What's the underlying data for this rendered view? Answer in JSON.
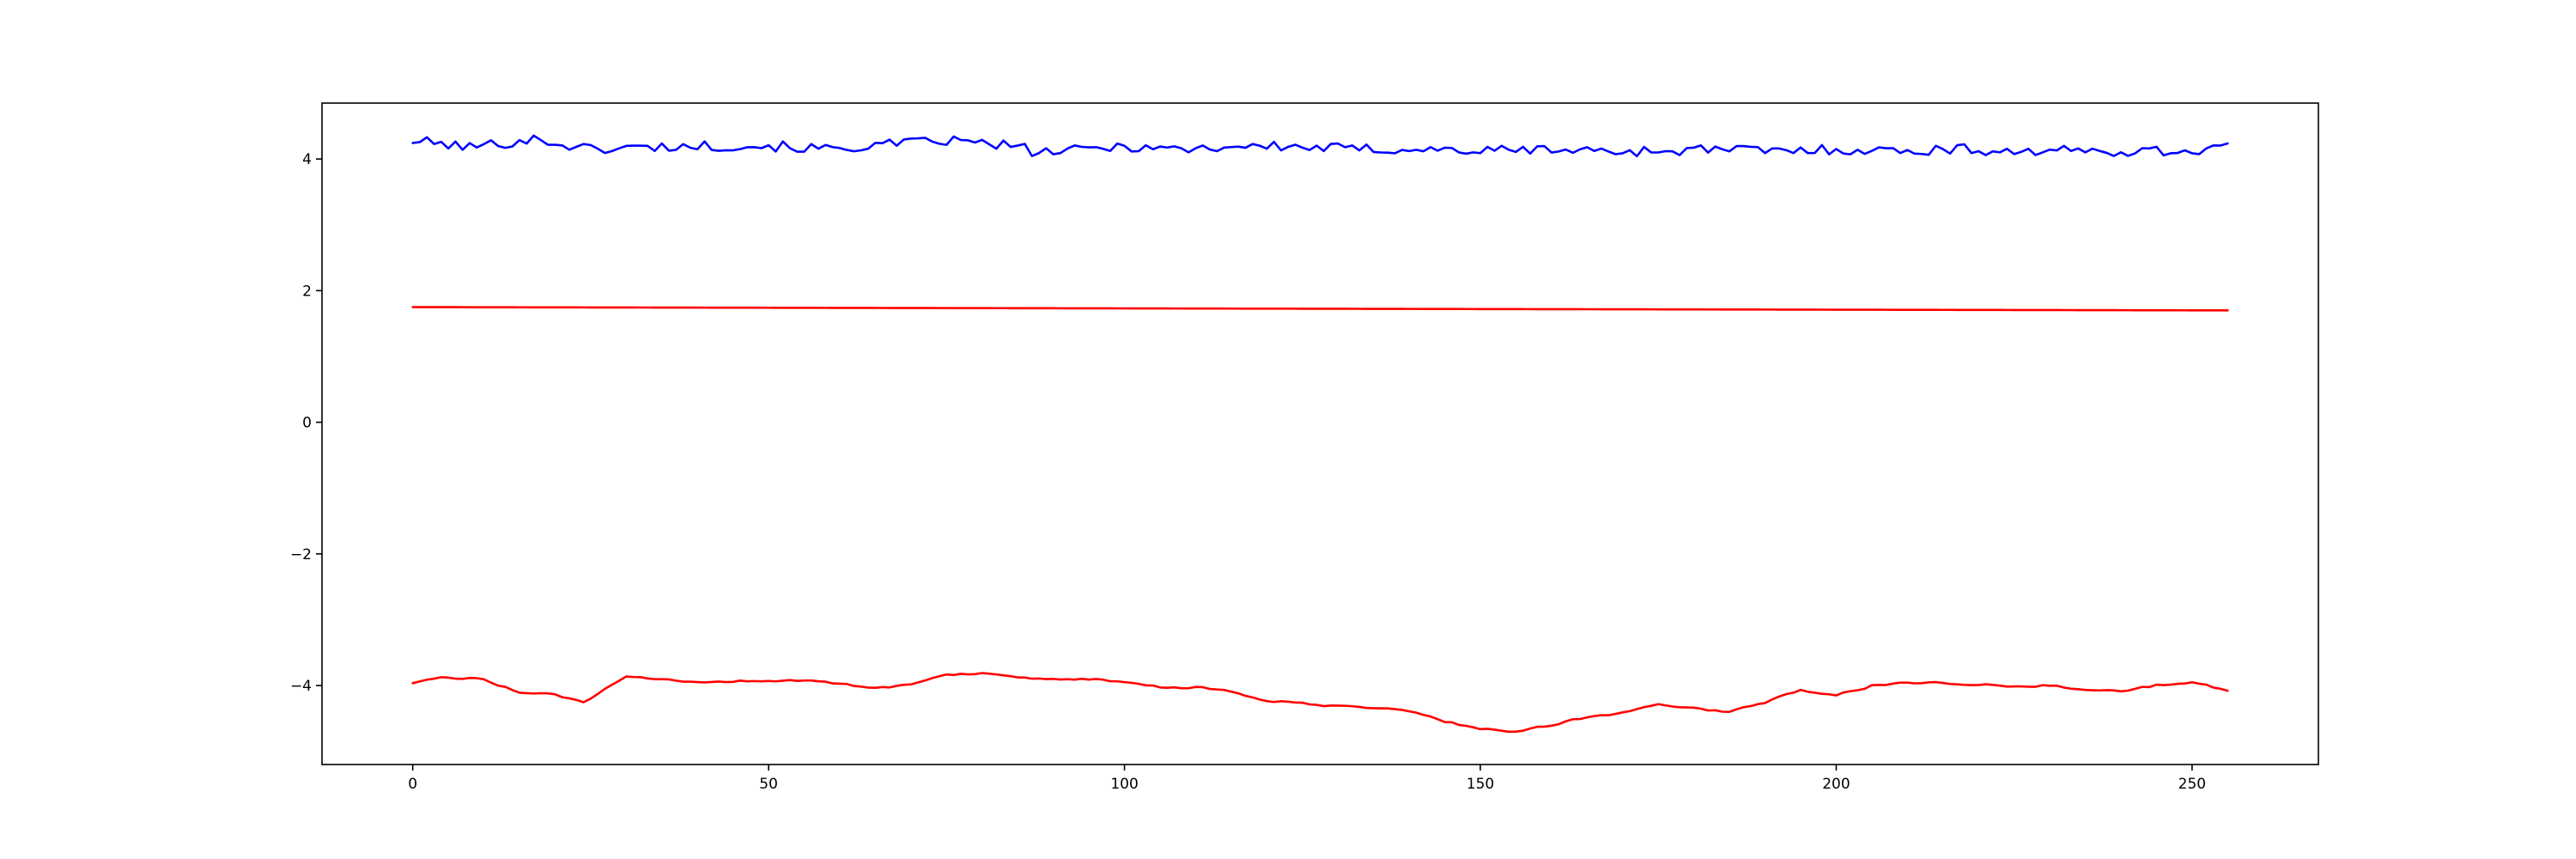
{
  "chart_data": {
    "type": "line",
    "title": "",
    "xlabel": "",
    "ylabel": "",
    "xlim": [
      -12.75,
      267.75
    ],
    "ylim": [
      -5.2,
      4.85
    ],
    "xticks": [
      0,
      50,
      100,
      150,
      200,
      250
    ],
    "yticks": [
      -4,
      -2,
      0,
      2,
      4
    ],
    "xtick_labels": [
      "0",
      "50",
      "100",
      "150",
      "200",
      "250"
    ],
    "ytick_labels": [
      "−4",
      "−2",
      "0",
      "2",
      "4"
    ],
    "grid": false,
    "legend": "none",
    "n_points": 256,
    "series": [
      {
        "color": "#0000ff",
        "style": "noisy",
        "knots": [
          [
            0,
            4.28
          ],
          [
            8,
            4.18
          ],
          [
            17,
            4.3
          ],
          [
            25,
            4.15
          ],
          [
            33,
            4.18
          ],
          [
            42,
            4.2
          ],
          [
            50,
            4.2
          ],
          [
            58,
            4.15
          ],
          [
            67,
            4.22
          ],
          [
            75,
            4.28
          ],
          [
            84,
            4.2
          ],
          [
            88,
            4.1
          ],
          [
            92,
            4.12
          ],
          [
            100,
            4.2
          ],
          [
            108,
            4.15
          ],
          [
            117,
            4.2
          ],
          [
            125,
            4.18
          ],
          [
            133,
            4.15
          ],
          [
            142,
            4.15
          ],
          [
            150,
            4.12
          ],
          [
            158,
            4.15
          ],
          [
            167,
            4.12
          ],
          [
            175,
            4.12
          ],
          [
            183,
            4.15
          ],
          [
            192,
            4.12
          ],
          [
            200,
            4.15
          ],
          [
            208,
            4.12
          ],
          [
            217,
            4.15
          ],
          [
            225,
            4.12
          ],
          [
            233,
            4.12
          ],
          [
            242,
            4.12
          ],
          [
            250,
            4.12
          ],
          [
            255,
            4.22
          ]
        ],
        "noise": 0.08
      },
      {
        "color": "#ff0000",
        "style": "linear",
        "knots": [
          [
            0,
            1.75
          ],
          [
            255,
            1.7
          ]
        ],
        "noise": 0
      },
      {
        "color": "#ff0000",
        "style": "noisy",
        "knots": [
          [
            0,
            -3.95
          ],
          [
            5,
            -3.88
          ],
          [
            10,
            -3.9
          ],
          [
            15,
            -4.1
          ],
          [
            20,
            -4.15
          ],
          [
            24,
            -4.25
          ],
          [
            28,
            -4.0
          ],
          [
            30,
            -3.88
          ],
          [
            35,
            -3.92
          ],
          [
            40,
            -3.95
          ],
          [
            50,
            -3.92
          ],
          [
            55,
            -3.92
          ],
          [
            60,
            -3.98
          ],
          [
            65,
            -4.05
          ],
          [
            70,
            -3.98
          ],
          [
            75,
            -3.82
          ],
          [
            80,
            -3.82
          ],
          [
            85,
            -3.9
          ],
          [
            90,
            -3.92
          ],
          [
            95,
            -3.9
          ],
          [
            100,
            -3.95
          ],
          [
            105,
            -4.03
          ],
          [
            110,
            -4.03
          ],
          [
            115,
            -4.1
          ],
          [
            120,
            -4.22
          ],
          [
            125,
            -4.28
          ],
          [
            130,
            -4.32
          ],
          [
            135,
            -4.35
          ],
          [
            140,
            -4.38
          ],
          [
            145,
            -4.55
          ],
          [
            150,
            -4.65
          ],
          [
            155,
            -4.7
          ],
          [
            160,
            -4.6
          ],
          [
            165,
            -4.48
          ],
          [
            170,
            -4.42
          ],
          [
            175,
            -4.28
          ],
          [
            180,
            -4.35
          ],
          [
            185,
            -4.4
          ],
          [
            190,
            -4.25
          ],
          [
            195,
            -4.08
          ],
          [
            200,
            -4.15
          ],
          [
            205,
            -4.0
          ],
          [
            210,
            -3.95
          ],
          [
            215,
            -3.95
          ],
          [
            220,
            -3.98
          ],
          [
            225,
            -4.02
          ],
          [
            230,
            -4.0
          ],
          [
            235,
            -4.05
          ],
          [
            240,
            -4.1
          ],
          [
            245,
            -4.0
          ],
          [
            250,
            -3.95
          ],
          [
            255,
            -4.08
          ]
        ],
        "noise": 0.03
      }
    ]
  }
}
